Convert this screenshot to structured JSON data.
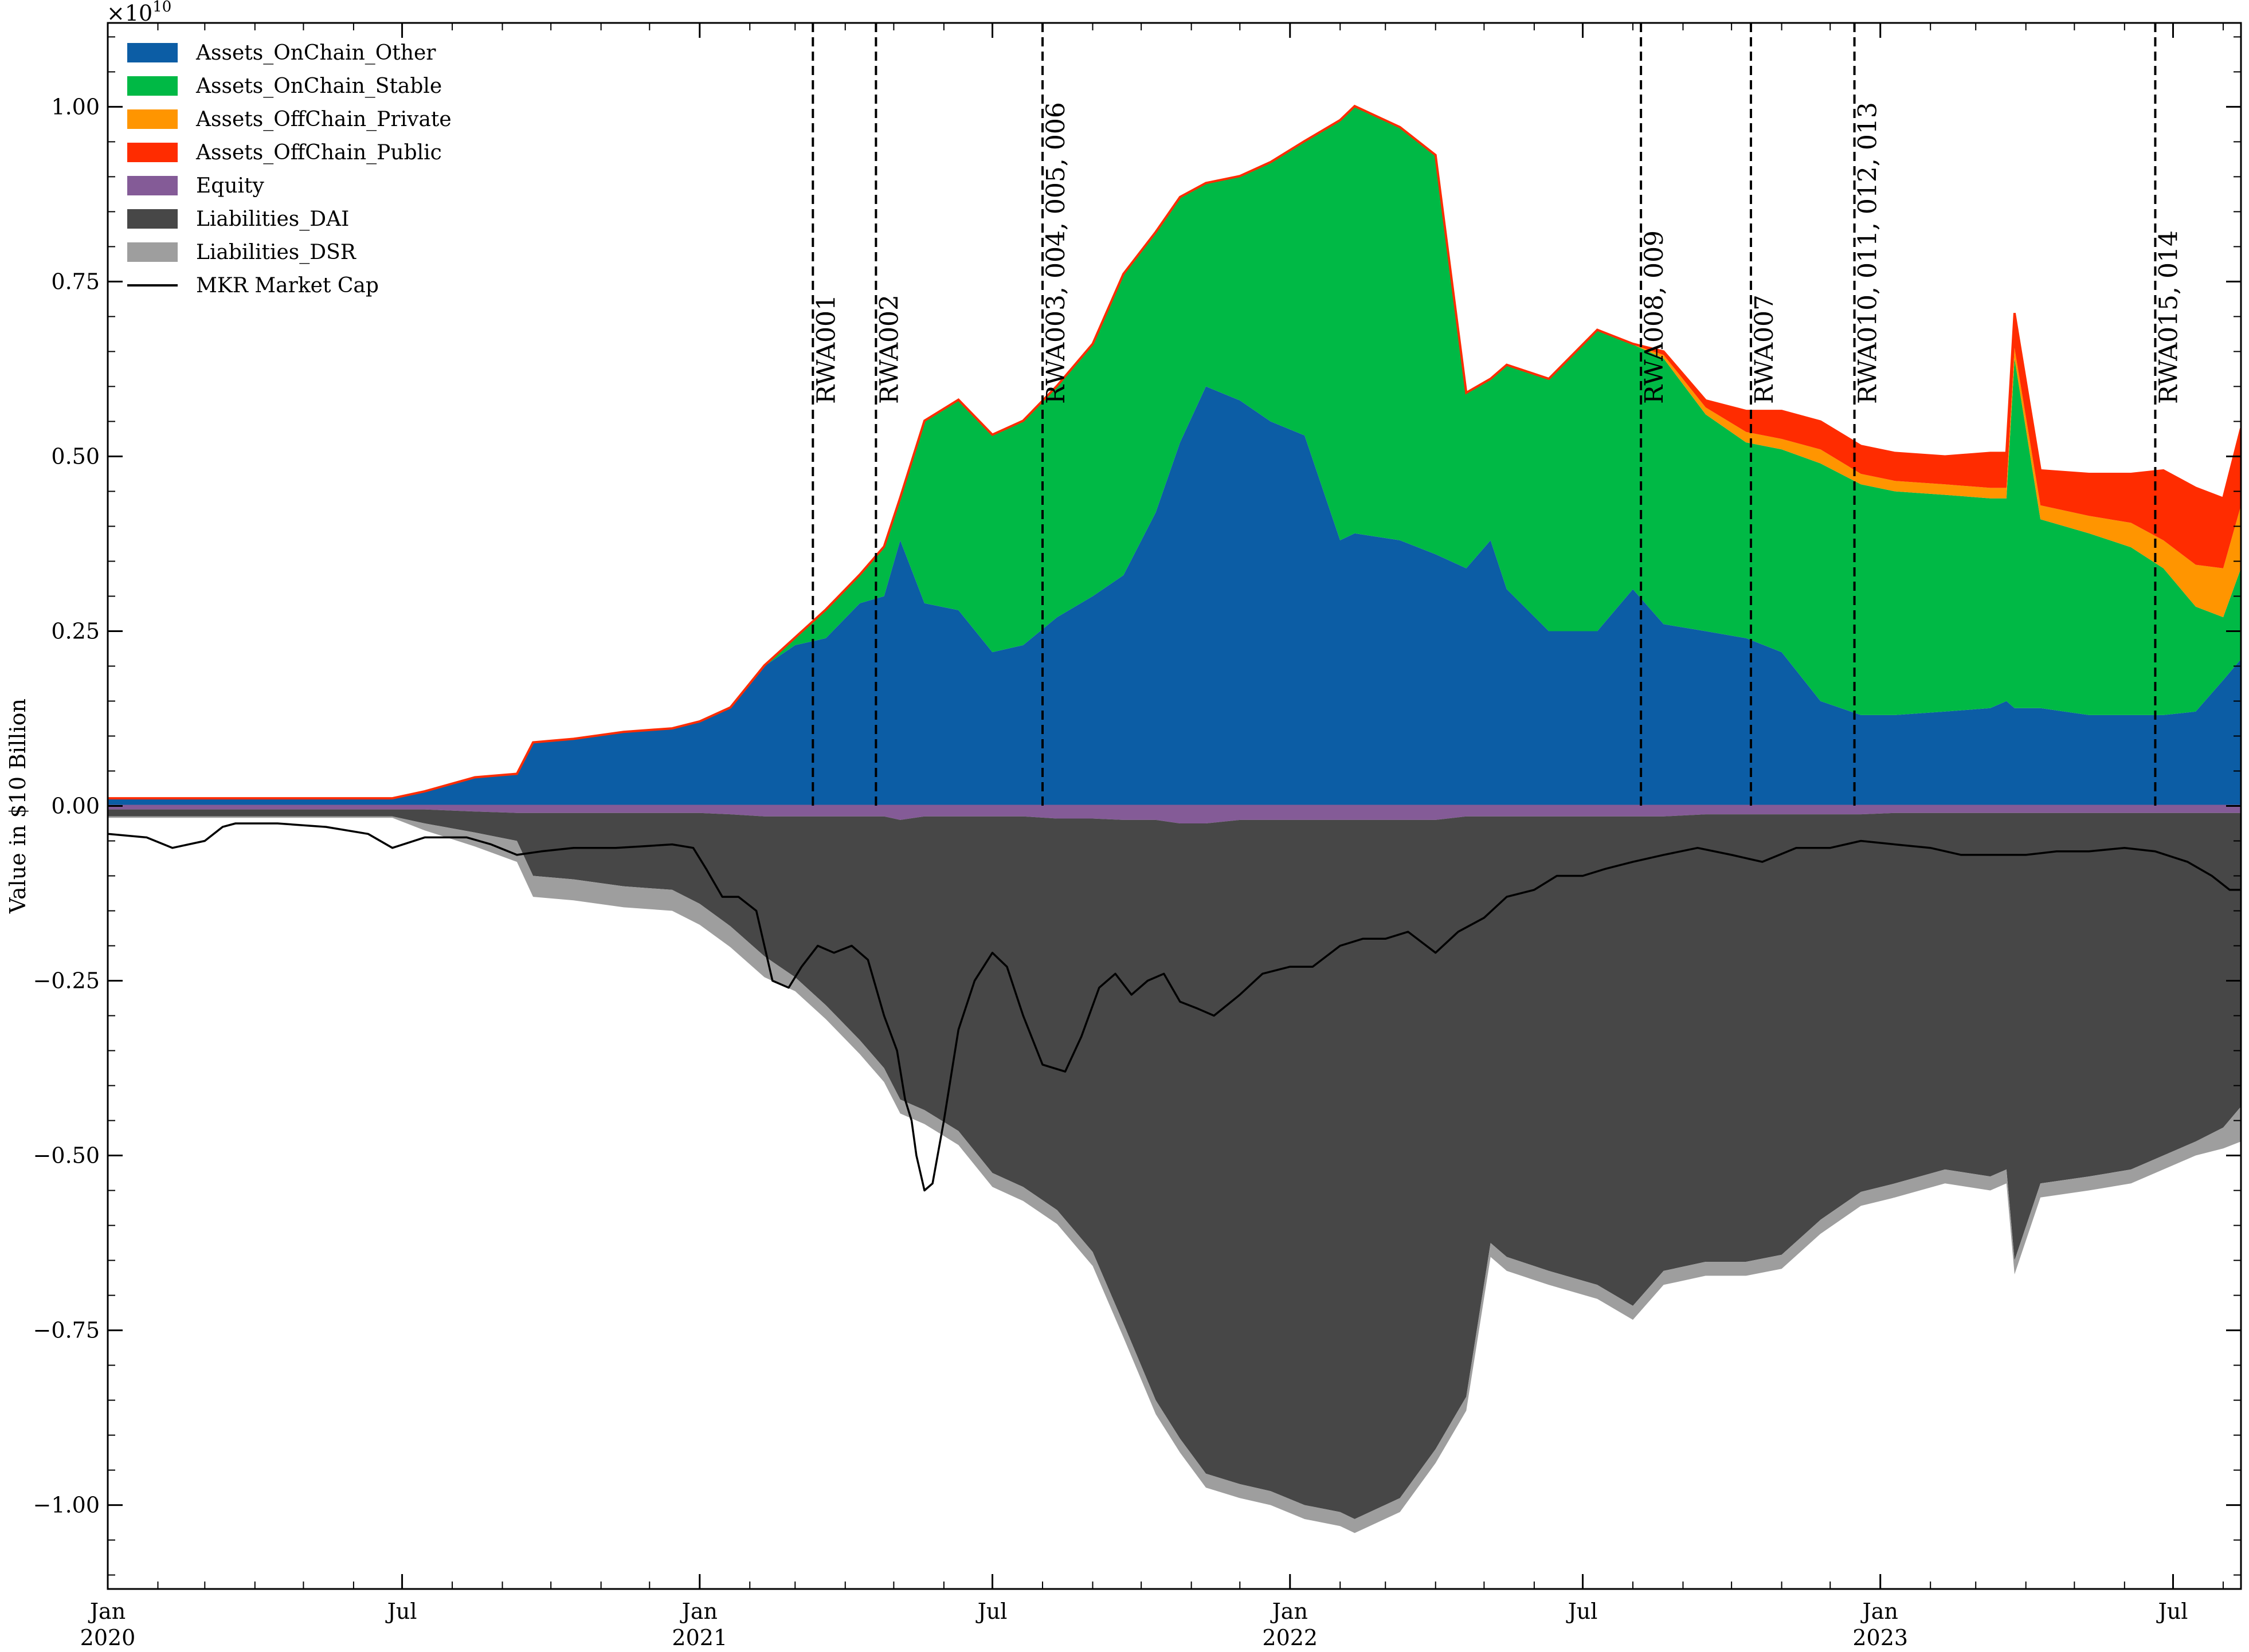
{
  "chart_data": {
    "type": "area",
    "ylabel": "Value in $10 Billion",
    "offset_text": "×10",
    "offset_exponent": "10",
    "ylim": [
      -1.12,
      1.12
    ],
    "yticks": [
      -1.0,
      -0.75,
      -0.5,
      -0.25,
      0.0,
      0.25,
      0.5,
      0.75,
      1.0
    ],
    "ytick_labels": [
      "−1.00",
      "−0.75",
      "−0.50",
      "−0.25",
      "0.00",
      "0.25",
      "0.50",
      "0.75",
      "1.00"
    ],
    "xlim": [
      "2020-01-01",
      "2023-08-12"
    ],
    "xticks": [
      {
        "date": "2020-01-01",
        "label": "Jan",
        "sub": "2020"
      },
      {
        "date": "2020-07-01",
        "label": "Jul",
        "sub": ""
      },
      {
        "date": "2021-01-01",
        "label": "Jan",
        "sub": "2021"
      },
      {
        "date": "2021-07-01",
        "label": "Jul",
        "sub": ""
      },
      {
        "date": "2022-01-01",
        "label": "Jan",
        "sub": "2022"
      },
      {
        "date": "2022-07-01",
        "label": "Jul",
        "sub": ""
      },
      {
        "date": "2023-01-01",
        "label": "Jan",
        "sub": "2023"
      },
      {
        "date": "2023-07-01",
        "label": "Jul",
        "sub": ""
      }
    ],
    "x": [
      "2020-01-01",
      "2020-03-01",
      "2020-05-01",
      "2020-06-25",
      "2020-07-15",
      "2020-08-15",
      "2020-09-10",
      "2020-09-20",
      "2020-10-15",
      "2020-11-15",
      "2020-12-15",
      "2021-01-01",
      "2021-01-20",
      "2021-02-10",
      "2021-03-01",
      "2021-03-20",
      "2021-04-10",
      "2021-04-25",
      "2021-05-05",
      "2021-05-20",
      "2021-06-10",
      "2021-07-01",
      "2021-07-20",
      "2021-08-10",
      "2021-09-01",
      "2021-09-20",
      "2021-10-10",
      "2021-10-25",
      "2021-11-10",
      "2021-12-01",
      "2021-12-20",
      "2022-01-10",
      "2022-02-01",
      "2022-02-10",
      "2022-03-10",
      "2022-04-01",
      "2022-04-20",
      "2022-05-05",
      "2022-05-15",
      "2022-06-10",
      "2022-07-10",
      "2022-08-01",
      "2022-08-20",
      "2022-09-15",
      "2022-10-10",
      "2022-11-01",
      "2022-11-25",
      "2022-12-20",
      "2023-01-10",
      "2023-02-10",
      "2023-03-10",
      "2023-03-20",
      "2023-03-25",
      "2023-04-10",
      "2023-05-10",
      "2023-06-05",
      "2023-06-25",
      "2023-07-15",
      "2023-08-01",
      "2023-08-12"
    ],
    "series": [
      {
        "name": "Assets_OnChain_Other",
        "color": "#0C5DA5",
        "values": [
          0.01,
          0.01,
          0.01,
          0.01,
          0.02,
          0.04,
          0.045,
          0.09,
          0.095,
          0.105,
          0.11,
          0.12,
          0.14,
          0.2,
          0.23,
          0.24,
          0.29,
          0.3,
          0.38,
          0.29,
          0.28,
          0.22,
          0.23,
          0.27,
          0.3,
          0.33,
          0.42,
          0.52,
          0.6,
          0.58,
          0.55,
          0.53,
          0.38,
          0.39,
          0.38,
          0.36,
          0.34,
          0.38,
          0.31,
          0.25,
          0.25,
          0.31,
          0.26,
          0.25,
          0.24,
          0.22,
          0.15,
          0.13,
          0.13,
          0.135,
          0.14,
          0.15,
          0.14,
          0.14,
          0.13,
          0.13,
          0.13,
          0.135,
          0.18,
          0.21
        ]
      },
      {
        "name": "Assets_OnChain_Stable",
        "color": "#00B945",
        "values": [
          0,
          0,
          0,
          0,
          0,
          0,
          0,
          0,
          0,
          0,
          0,
          0,
          0,
          0,
          0.01,
          0.04,
          0.04,
          0.07,
          0.06,
          0.26,
          0.3,
          0.31,
          0.32,
          0.33,
          0.36,
          0.43,
          0.4,
          0.35,
          0.29,
          0.32,
          0.37,
          0.42,
          0.6,
          0.61,
          0.59,
          0.57,
          0.25,
          0.23,
          0.32,
          0.36,
          0.43,
          0.35,
          0.38,
          0.31,
          0.28,
          0.29,
          0.34,
          0.33,
          0.32,
          0.31,
          0.3,
          0.29,
          0.5,
          0.27,
          0.26,
          0.24,
          0.21,
          0.15,
          0.09,
          0.13
        ]
      },
      {
        "name": "Assets_OffChain_Private",
        "color": "#FF9500",
        "values": [
          0,
          0,
          0,
          0,
          0,
          0,
          0,
          0,
          0,
          0,
          0,
          0,
          0,
          0,
          0,
          0,
          0,
          0,
          0,
          0,
          0,
          0,
          0,
          0,
          0,
          0,
          0,
          0,
          0,
          0,
          0,
          0,
          0,
          0,
          0,
          0,
          0,
          0,
          0,
          0,
          0,
          0,
          0.005,
          0.01,
          0.015,
          0.015,
          0.02,
          0.015,
          0.015,
          0.015,
          0.015,
          0.015,
          0.015,
          0.02,
          0.025,
          0.035,
          0.04,
          0.06,
          0.07,
          0.09
        ]
      },
      {
        "name": "Assets_OffChain_Public",
        "color": "#FF2C00",
        "values": [
          0.001,
          0.001,
          0.001,
          0.001,
          0.001,
          0.001,
          0.001,
          0.001,
          0.001,
          0.001,
          0.001,
          0.001,
          0.001,
          0.001,
          0.001,
          0.001,
          0.001,
          0.001,
          0.001,
          0.001,
          0.001,
          0.001,
          0.001,
          0.001,
          0.001,
          0.001,
          0.001,
          0.001,
          0.001,
          0.001,
          0.001,
          0.001,
          0.001,
          0.001,
          0.001,
          0.001,
          0.001,
          0.001,
          0.001,
          0.001,
          0.001,
          0.001,
          0.005,
          0.01,
          0.03,
          0.04,
          0.04,
          0.04,
          0.04,
          0.04,
          0.05,
          0.05,
          0.05,
          0.05,
          0.06,
          0.07,
          0.1,
          0.11,
          0.1,
          0.11
        ]
      },
      {
        "name": "Equity",
        "color": "#845B97",
        "values": [
          -0.005,
          -0.005,
          -0.005,
          -0.005,
          -0.005,
          -0.008,
          -0.01,
          -0.01,
          -0.01,
          -0.01,
          -0.01,
          -0.01,
          -0.012,
          -0.015,
          -0.015,
          -0.015,
          -0.015,
          -0.015,
          -0.02,
          -0.015,
          -0.015,
          -0.015,
          -0.015,
          -0.018,
          -0.018,
          -0.02,
          -0.02,
          -0.025,
          -0.025,
          -0.02,
          -0.02,
          -0.02,
          -0.02,
          -0.02,
          -0.02,
          -0.02,
          -0.015,
          -0.015,
          -0.015,
          -0.015,
          -0.015,
          -0.015,
          -0.015,
          -0.012,
          -0.012,
          -0.012,
          -0.012,
          -0.012,
          -0.01,
          -0.01,
          -0.01,
          -0.01,
          -0.01,
          -0.01,
          -0.01,
          -0.01,
          -0.01,
          -0.01,
          -0.01,
          -0.01
        ]
      },
      {
        "name": "Liabilities_DAI",
        "color": "#474747",
        "values": [
          -0.01,
          -0.01,
          -0.01,
          -0.01,
          -0.02,
          -0.03,
          -0.04,
          -0.09,
          -0.095,
          -0.105,
          -0.11,
          -0.13,
          -0.16,
          -0.2,
          -0.23,
          -0.27,
          -0.32,
          -0.36,
          -0.4,
          -0.42,
          -0.45,
          -0.51,
          -0.53,
          -0.56,
          -0.62,
          -0.72,
          -0.83,
          -0.88,
          -0.93,
          -0.95,
          -0.96,
          -0.98,
          -0.99,
          -1.0,
          -0.97,
          -0.9,
          -0.83,
          -0.61,
          -0.63,
          -0.65,
          -0.67,
          -0.7,
          -0.65,
          -0.64,
          -0.64,
          -0.63,
          -0.58,
          -0.54,
          -0.53,
          -0.51,
          -0.52,
          -0.51,
          -0.64,
          -0.53,
          -0.52,
          -0.51,
          -0.49,
          -0.47,
          -0.45,
          -0.42
        ]
      },
      {
        "name": "Liabilities_DSR",
        "color": "#9E9E9E",
        "values": [
          -0.002,
          -0.002,
          -0.002,
          -0.002,
          -0.01,
          -0.02,
          -0.03,
          -0.03,
          -0.03,
          -0.03,
          -0.03,
          -0.03,
          -0.03,
          -0.03,
          -0.02,
          -0.02,
          -0.02,
          -0.02,
          -0.02,
          -0.02,
          -0.02,
          -0.02,
          -0.02,
          -0.02,
          -0.02,
          -0.02,
          -0.02,
          -0.02,
          -0.02,
          -0.02,
          -0.02,
          -0.02,
          -0.02,
          -0.02,
          -0.02,
          -0.02,
          -0.02,
          -0.02,
          -0.02,
          -0.02,
          -0.02,
          -0.02,
          -0.02,
          -0.02,
          -0.02,
          -0.02,
          -0.02,
          -0.02,
          -0.02,
          -0.02,
          -0.02,
          -0.02,
          -0.02,
          -0.02,
          -0.02,
          -0.02,
          -0.02,
          -0.02,
          -0.03,
          -0.05
        ]
      }
    ],
    "line_series": {
      "name": "MKR Market Cap",
      "color": "#000000",
      "x": [
        "2020-01-01",
        "2020-01-25",
        "2020-02-10",
        "2020-03-01",
        "2020-03-12",
        "2020-03-20",
        "2020-04-15",
        "2020-05-15",
        "2020-06-10",
        "2020-06-25",
        "2020-07-15",
        "2020-08-10",
        "2020-08-25",
        "2020-09-10",
        "2020-09-25",
        "2020-10-15",
        "2020-11-10",
        "2020-11-25",
        "2020-12-15",
        "2020-12-28",
        "2021-01-05",
        "2021-01-15",
        "2021-01-25",
        "2021-02-05",
        "2021-02-15",
        "2021-02-25",
        "2021-03-05",
        "2021-03-15",
        "2021-03-25",
        "2021-04-05",
        "2021-04-15",
        "2021-04-25",
        "2021-05-03",
        "2021-05-08",
        "2021-05-12",
        "2021-05-15",
        "2021-05-20",
        "2021-05-25",
        "2021-06-01",
        "2021-06-10",
        "2021-06-20",
        "2021-07-01",
        "2021-07-10",
        "2021-07-20",
        "2021-08-01",
        "2021-08-15",
        "2021-08-25",
        "2021-09-05",
        "2021-09-15",
        "2021-09-25",
        "2021-10-05",
        "2021-10-15",
        "2021-10-25",
        "2021-11-05",
        "2021-11-15",
        "2021-12-01",
        "2021-12-15",
        "2022-01-01",
        "2022-01-15",
        "2022-02-01",
        "2022-02-15",
        "2022-03-01",
        "2022-03-15",
        "2022-04-01",
        "2022-04-15",
        "2022-05-01",
        "2022-05-15",
        "2022-06-01",
        "2022-06-15",
        "2022-07-01",
        "2022-07-15",
        "2022-08-01",
        "2022-08-20",
        "2022-09-10",
        "2022-10-01",
        "2022-10-20",
        "2022-11-10",
        "2022-12-01",
        "2022-12-20",
        "2023-01-10",
        "2023-02-01",
        "2023-02-20",
        "2023-03-10",
        "2023-04-01",
        "2023-04-20",
        "2023-05-10",
        "2023-06-01",
        "2023-06-20",
        "2023-07-10",
        "2023-07-25",
        "2023-08-05",
        "2023-08-12"
      ],
      "values": [
        -0.04,
        -0.045,
        -0.06,
        -0.05,
        -0.03,
        -0.025,
        -0.025,
        -0.03,
        -0.04,
        -0.06,
        -0.045,
        -0.045,
        -0.055,
        -0.07,
        -0.065,
        -0.06,
        -0.06,
        -0.058,
        -0.055,
        -0.06,
        -0.09,
        -0.13,
        -0.13,
        -0.15,
        -0.25,
        -0.26,
        -0.23,
        -0.2,
        -0.21,
        -0.2,
        -0.22,
        -0.3,
        -0.35,
        -0.42,
        -0.45,
        -0.5,
        -0.55,
        -0.54,
        -0.45,
        -0.32,
        -0.25,
        -0.21,
        -0.23,
        -0.3,
        -0.37,
        -0.38,
        -0.33,
        -0.26,
        -0.24,
        -0.27,
        -0.25,
        -0.24,
        -0.28,
        -0.29,
        -0.3,
        -0.27,
        -0.24,
        -0.23,
        -0.23,
        -0.2,
        -0.19,
        -0.19,
        -0.18,
        -0.21,
        -0.18,
        -0.16,
        -0.13,
        -0.12,
        -0.1,
        -0.1,
        -0.09,
        -0.08,
        -0.07,
        -0.06,
        -0.07,
        -0.08,
        -0.06,
        -0.06,
        -0.05,
        -0.055,
        -0.06,
        -0.07,
        -0.07,
        -0.07,
        -0.065,
        -0.065,
        -0.06,
        -0.065,
        -0.08,
        -0.1,
        -0.12,
        -0.12
      ]
    },
    "annotations": [
      {
        "date": "2021-03-12",
        "label": "RWA001"
      },
      {
        "date": "2021-04-20",
        "label": "RWA002"
      },
      {
        "date": "2021-08-01",
        "label": "RWA003, 004, 005, 006"
      },
      {
        "date": "2022-08-06",
        "label": "RWA008, 009"
      },
      {
        "date": "2022-10-13",
        "label": "RWA007"
      },
      {
        "date": "2022-12-16",
        "label": "RWA010, 011, 012, 013"
      },
      {
        "date": "2023-06-20",
        "label": "RWA015, 014"
      }
    ],
    "legend": {
      "placement": "upper-left",
      "entries": [
        {
          "label": "Assets_OnChain_Other",
          "color": "#0C5DA5",
          "kind": "patch"
        },
        {
          "label": "Assets_OnChain_Stable",
          "color": "#00B945",
          "kind": "patch"
        },
        {
          "label": "Assets_OffChain_Private",
          "color": "#FF9500",
          "kind": "patch"
        },
        {
          "label": "Assets_OffChain_Public",
          "color": "#FF2C00",
          "kind": "patch"
        },
        {
          "label": "Equity",
          "color": "#845B97",
          "kind": "patch"
        },
        {
          "label": "Liabilities_DAI",
          "color": "#474747",
          "kind": "patch"
        },
        {
          "label": "Liabilities_DSR",
          "color": "#9E9E9E",
          "kind": "patch"
        },
        {
          "label": "MKR Market Cap",
          "color": "#000000",
          "kind": "line"
        }
      ]
    },
    "grid": false
  }
}
